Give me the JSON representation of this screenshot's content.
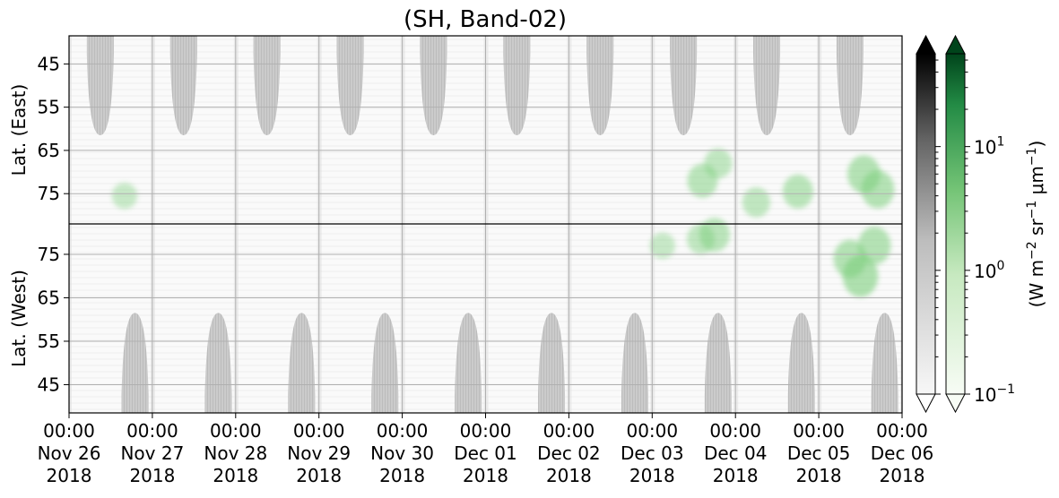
{
  "chart_data": {
    "type": "heatmap",
    "title": "(SH, Band-02)",
    "x": {
      "start": "2018-11-26 00:00",
      "end": "2018-12-06 00:00",
      "ticks": [
        {
          "date": "2018-11-26",
          "time": "00:00",
          "day": "Nov 26",
          "year": "2018"
        },
        {
          "date": "2018-11-27",
          "time": "00:00",
          "day": "Nov 27",
          "year": "2018"
        },
        {
          "date": "2018-11-28",
          "time": "00:00",
          "day": "Nov 28",
          "year": "2018"
        },
        {
          "date": "2018-11-29",
          "time": "00:00",
          "day": "Nov 29",
          "year": "2018"
        },
        {
          "date": "2018-11-30",
          "time": "00:00",
          "day": "Nov 30",
          "year": "2018"
        },
        {
          "date": "2018-12-01",
          "time": "00:00",
          "day": "Dec 01",
          "year": "2018"
        },
        {
          "date": "2018-12-02",
          "time": "00:00",
          "day": "Dec 02",
          "year": "2018"
        },
        {
          "date": "2018-12-03",
          "time": "00:00",
          "day": "Dec 03",
          "year": "2018"
        },
        {
          "date": "2018-12-04",
          "time": "00:00",
          "day": "Dec 04",
          "year": "2018"
        },
        {
          "date": "2018-12-05",
          "time": "00:00",
          "day": "Dec 05",
          "year": "2018"
        },
        {
          "date": "2018-12-06",
          "time": "00:00",
          "day": "Dec 06",
          "year": "2018"
        }
      ]
    },
    "panels": [
      {
        "name": "east",
        "ylabel": "Lat. (East)",
        "yticks": [
          "45",
          "55",
          "65",
          "75"
        ],
        "ylim": [
          38.5,
          82
        ],
        "gray_lobes": [
          {
            "center": "2018-11-26 09:00",
            "tip": 61.5
          },
          {
            "center": "2018-11-27 09:00",
            "tip": 61.5
          },
          {
            "center": "2018-11-28 09:00",
            "tip": 61.5
          },
          {
            "center": "2018-11-29 09:00",
            "tip": 61.5
          },
          {
            "center": "2018-11-30 09:00",
            "tip": 61.5
          },
          {
            "center": "2018-12-01 09:00",
            "tip": 61.5
          },
          {
            "center": "2018-12-02 09:00",
            "tip": 61.5
          },
          {
            "center": "2018-12-03 09:00",
            "tip": 61.5
          },
          {
            "center": "2018-12-04 09:00",
            "tip": 61.5
          },
          {
            "center": "2018-12-05 09:00",
            "tip": 61.5
          }
        ],
        "green_patches": [
          {
            "t": "2018-11-26 16:00",
            "lat": 75.5,
            "level": 0.3
          },
          {
            "t": "2018-12-03 14:30",
            "lat": 72.0,
            "level": 0.5
          },
          {
            "t": "2018-12-03 19:00",
            "lat": 68.0,
            "level": 0.4
          },
          {
            "t": "2018-12-04 06:00",
            "lat": 77.0,
            "level": 0.4
          },
          {
            "t": "2018-12-04 18:00",
            "lat": 74.5,
            "level": 0.5
          },
          {
            "t": "2018-12-05 13:00",
            "lat": 70.5,
            "level": 0.6
          },
          {
            "t": "2018-12-05 17:00",
            "lat": 74.0,
            "level": 0.6
          }
        ]
      },
      {
        "name": "west",
        "ylabel": "Lat. (West)",
        "yticks": [
          "75",
          "65",
          "55",
          "45"
        ],
        "ylim": [
          82,
          38.5
        ],
        "gray_lobes": [
          {
            "center": "2018-11-26 19:00",
            "tip": 61.5
          },
          {
            "center": "2018-11-27 19:00",
            "tip": 61.5
          },
          {
            "center": "2018-11-28 19:00",
            "tip": 61.5
          },
          {
            "center": "2018-11-29 19:00",
            "tip": 61.5
          },
          {
            "center": "2018-11-30 19:00",
            "tip": 61.5
          },
          {
            "center": "2018-12-01 19:00",
            "tip": 61.5
          },
          {
            "center": "2018-12-02 19:00",
            "tip": 61.5
          },
          {
            "center": "2018-12-03 19:00",
            "tip": 61.5
          },
          {
            "center": "2018-12-04 19:00",
            "tip": 61.5
          },
          {
            "center": "2018-12-05 19:00",
            "tip": 61.5
          }
        ],
        "green_patches": [
          {
            "t": "2018-12-03 03:00",
            "lat": 77.0,
            "level": 0.3
          },
          {
            "t": "2018-12-03 14:00",
            "lat": 78.5,
            "level": 0.4
          },
          {
            "t": "2018-12-03 18:00",
            "lat": 79.5,
            "level": 0.5
          },
          {
            "t": "2018-12-05 09:00",
            "lat": 74.0,
            "level": 0.6
          },
          {
            "t": "2018-12-05 12:00",
            "lat": 70.0,
            "level": 0.7
          },
          {
            "t": "2018-12-05 16:00",
            "lat": 77.0,
            "level": 0.6
          }
        ]
      }
    ],
    "colorbars": [
      {
        "name": "gray",
        "colormap": "Greys",
        "extend": "both",
        "scale": "log",
        "low": "#f7f7f7",
        "high": "#000000"
      },
      {
        "name": "green",
        "colormap": "Greens",
        "extend": "both",
        "scale": "log",
        "low": "#f7fcf5",
        "high": "#00441b",
        "ticks": [
          {
            "mantissa": "10",
            "exponent": "1"
          },
          {
            "mantissa": "10",
            "exponent": "0"
          },
          {
            "mantissa": "10",
            "exponent": "−1"
          }
        ]
      }
    ],
    "colorbar_label": {
      "prefix": "(W m",
      "exp1": "−2",
      "mid": " sr",
      "exp2": "−1",
      "mid2": " μm",
      "exp3": "−1",
      "suffix": ")"
    },
    "scale_log_range": [
      -1,
      1.75
    ],
    "grid": true,
    "colors": {
      "lobe": "#c8c8c8",
      "grid": "#b0b0b0",
      "patch": "#7ccf7c",
      "bg_texture": "#ececec"
    }
  }
}
